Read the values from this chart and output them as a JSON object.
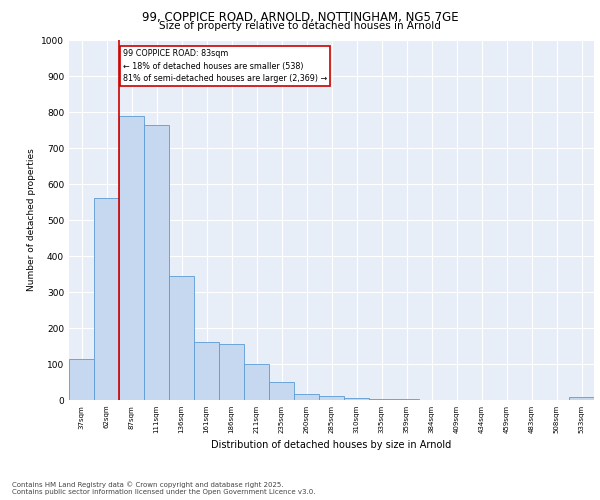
{
  "title_line1": "99, COPPICE ROAD, ARNOLD, NOTTINGHAM, NG5 7GE",
  "title_line2": "Size of property relative to detached houses in Arnold",
  "xlabel": "Distribution of detached houses by size in Arnold",
  "ylabel": "Number of detached properties",
  "categories": [
    "37sqm",
    "62sqm",
    "87sqm",
    "111sqm",
    "136sqm",
    "161sqm",
    "186sqm",
    "211sqm",
    "235sqm",
    "260sqm",
    "285sqm",
    "310sqm",
    "335sqm",
    "359sqm",
    "384sqm",
    "409sqm",
    "434sqm",
    "459sqm",
    "483sqm",
    "508sqm",
    "533sqm"
  ],
  "values": [
    113,
    560,
    790,
    765,
    345,
    160,
    155,
    100,
    50,
    18,
    12,
    5,
    3,
    2,
    1,
    1,
    0,
    0,
    0,
    0,
    8
  ],
  "bar_color": "#c5d8ef",
  "bar_edge_color": "#5b9bd5",
  "background_color": "#e8eef8",
  "grid_color": "#ffffff",
  "vline_color": "#cc0000",
  "vline_x": 1.5,
  "annotation_text": "99 COPPICE ROAD: 83sqm\n← 18% of detached houses are smaller (538)\n81% of semi-detached houses are larger (2,369) →",
  "annotation_box_color": "#cc0000",
  "ylim": [
    0,
    1000
  ],
  "yticks": [
    0,
    100,
    200,
    300,
    400,
    500,
    600,
    700,
    800,
    900,
    1000
  ],
  "footer_line1": "Contains HM Land Registry data © Crown copyright and database right 2025.",
  "footer_line2": "Contains public sector information licensed under the Open Government Licence v3.0."
}
